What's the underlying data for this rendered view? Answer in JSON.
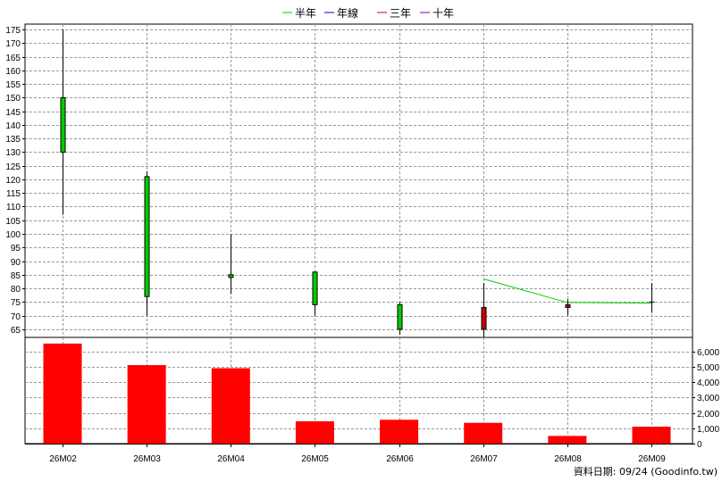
{
  "chart_data": {
    "type": "candlestick",
    "legend": [
      {
        "label": "半年",
        "color": "#00cc00"
      },
      {
        "label": "年線",
        "color": "#0000cc"
      },
      {
        "label": "三年",
        "color": "#cc0000"
      },
      {
        "label": "十年",
        "color": "#6600cc"
      }
    ],
    "categories": [
      "26M02",
      "26M03",
      "26M04",
      "26M05",
      "26M06",
      "26M07",
      "26M08",
      "26M09"
    ],
    "price_axis": {
      "ylim": [
        62,
        177
      ],
      "ticks": [
        65,
        70,
        75,
        80,
        85,
        90,
        95,
        100,
        105,
        110,
        115,
        120,
        125,
        130,
        135,
        140,
        145,
        150,
        155,
        160,
        165,
        170,
        175
      ]
    },
    "candles": [
      {
        "open": 130,
        "close": 150,
        "high": 175,
        "low": 107,
        "color": "#00cc00"
      },
      {
        "open": 77,
        "close": 121,
        "high": 123,
        "low": 70,
        "color": "#00cc00"
      },
      {
        "open": 84,
        "close": 85,
        "high": 100,
        "low": 78,
        "color": "#00cc00"
      },
      {
        "open": 74,
        "close": 86,
        "high": 86,
        "low": 70,
        "color": "#00cc00"
      },
      {
        "open": 65,
        "close": 74,
        "high": 75,
        "low": 63,
        "color": "#00cc00"
      },
      {
        "open": 73,
        "close": 65,
        "high": 82,
        "low": 62,
        "color": "#cc0000"
      },
      {
        "open": 74,
        "close": 73,
        "high": 76,
        "low": 70,
        "color": "#cc0000"
      },
      {
        "open": 75,
        "close": 75,
        "high": 82,
        "low": 71,
        "color": "#000000"
      }
    ],
    "series": [
      {
        "name": "半年",
        "color": "#00cc00",
        "values": [
          null,
          null,
          null,
          null,
          null,
          83.5,
          74.8,
          74.6
        ]
      }
    ],
    "volume": {
      "values": [
        6500,
        5100,
        4900,
        1450,
        1550,
        1350,
        500,
        1100
      ],
      "color": "#ff0000",
      "ylim": [
        0,
        6900
      ],
      "ticks": [
        0,
        1000,
        2000,
        3000,
        4000,
        5000,
        6000
      ],
      "tick_labels": [
        "0",
        "1,000",
        "2,000",
        "3,000",
        "4,000",
        "5,000",
        "6,000"
      ]
    },
    "grid": true,
    "footer": "資料日期: 09/24  (Goodinfo.tw)"
  }
}
